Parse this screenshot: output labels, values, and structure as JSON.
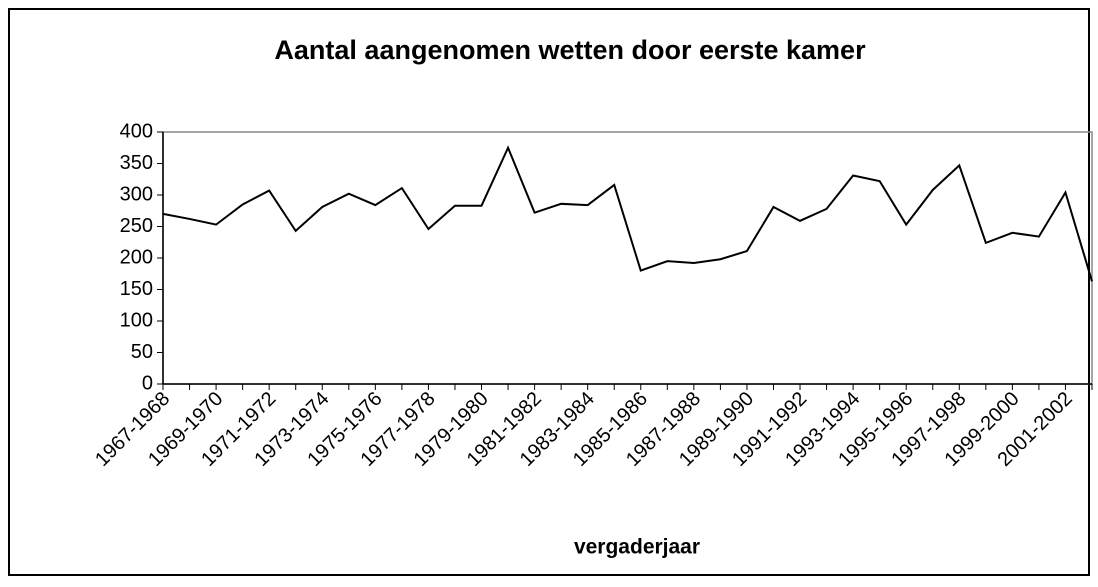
{
  "chart_data": {
    "type": "line",
    "title": "Aantal aangenomen wetten door eerste kamer",
    "x_label": "vergaderjaar",
    "categories": [
      "1967-1968",
      null,
      "1969-1970",
      null,
      "1971-1972",
      null,
      "1973-1974",
      null,
      "1975-1976",
      null,
      "1977-1978",
      null,
      "1979-1980",
      null,
      "1981-1982",
      null,
      "1983-1984",
      null,
      "1985-1986",
      null,
      "1987-1988",
      null,
      "1989-1990",
      null,
      "1991-1992",
      null,
      "1993-1994",
      null,
      "1995-1996",
      null,
      "1997-1998",
      null,
      "1999-2000",
      null,
      "2001-2002",
      null
    ],
    "values": [
      270,
      262,
      253,
      285,
      307,
      243,
      281,
      302,
      284,
      311,
      246,
      283,
      283,
      375,
      272,
      286,
      284,
      316,
      180,
      195,
      192,
      198,
      211,
      281,
      259,
      278,
      331,
      322,
      253,
      308,
      347,
      224,
      240,
      234,
      304,
      163
    ],
    "color": "#000000",
    "ylim": [
      0,
      400
    ],
    "yticks": [
      0,
      50,
      100,
      150,
      200,
      250,
      300,
      350,
      400
    ],
    "grid": false
  }
}
